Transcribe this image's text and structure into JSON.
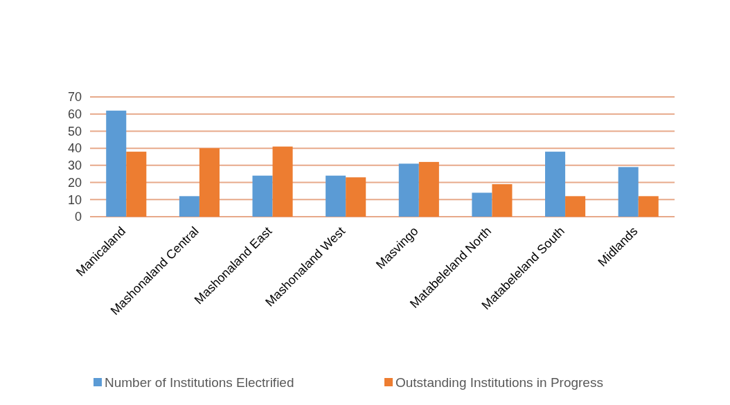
{
  "chart_data": {
    "type": "bar",
    "categories": [
      "Manicaland",
      "Mashonaland Central",
      "Mashonaland East",
      "Mashonaland West",
      "Masvingo",
      "Matabeleland North",
      "Matabeleland South",
      "Midlands"
    ],
    "series": [
      {
        "name": "Number of Institutions Electrified",
        "color": "#5b9bd5",
        "values": [
          62,
          12,
          24,
          24,
          31,
          14,
          38,
          29
        ]
      },
      {
        "name": "Outstanding Institutions in Progress",
        "color": "#ed7d31",
        "values": [
          38,
          40,
          41,
          23,
          32,
          19,
          12,
          12
        ]
      }
    ],
    "ylim": [
      0,
      70
    ],
    "yticks": [
      0,
      10,
      20,
      30,
      40,
      50,
      60,
      70
    ],
    "grid": "y",
    "legend": "bottom"
  }
}
